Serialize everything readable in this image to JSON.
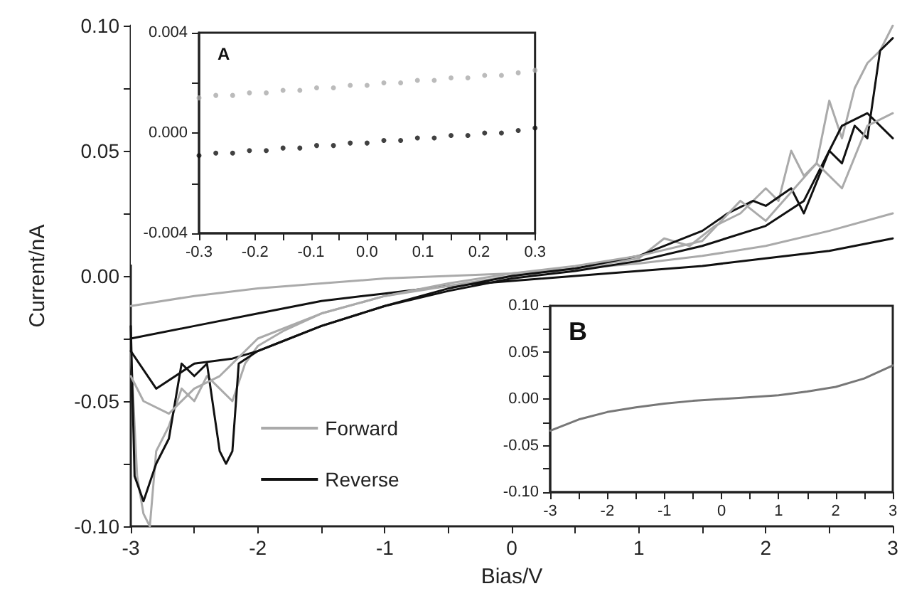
{
  "chart_data": [
    {
      "type": "line",
      "xlabel": "Bias/V",
      "ylabel": "Current/nA",
      "xlim": [
        -3,
        3
      ],
      "ylim": [
        -0.1,
        0.1
      ],
      "xticks": [
        -3,
        {
          "value": -2.5,
          "label": null
        },
        -2,
        {
          "value": -1.5,
          "label": null
        },
        -1,
        {
          "value": -0.5,
          "label": null
        },
        0,
        {
          "value": 0.5,
          "label": null
        },
        1,
        {
          "value": 1.5,
          "label": null
        },
        2,
        {
          "value": 2.5,
          "label": null
        },
        3
      ],
      "yticks": [
        {
          "value": -0.1,
          "label": "-0.10"
        },
        {
          "value": -0.075,
          "label": null
        },
        {
          "value": -0.05,
          "label": "-0.05"
        },
        {
          "value": -0.025,
          "label": null
        },
        {
          "value": 0,
          "label": "0.00"
        },
        {
          "value": 0.025,
          "label": null
        },
        {
          "value": 0.05,
          "label": "0.05"
        },
        {
          "value": 0.075,
          "label": null
        },
        {
          "value": 0.1,
          "label": "0.10"
        }
      ],
      "grid": false,
      "legend": "bottom left",
      "marker": "none",
      "line_style": "solid",
      "series": [
        {
          "name": "Forward",
          "color": "#aaaaaa",
          "x": [
            -3,
            -2.5,
            -2,
            -1.5,
            -1,
            -0.5,
            0,
            0.5,
            1,
            1.5,
            2,
            2.5,
            3
          ],
          "values": [
            -0.012,
            -0.008,
            -0.005,
            -0.003,
            -0.001,
            0,
            0.001,
            0.003,
            0.005,
            0.008,
            0.012,
            0.018,
            0.025
          ]
        },
        {
          "name": "Reverse",
          "color": "#111111",
          "x": [
            -3,
            -2.5,
            -2,
            -1.5,
            -1,
            -0.5,
            0,
            0.5,
            1,
            1.5,
            2,
            2.5,
            3
          ],
          "values": [
            -0.025,
            -0.02,
            -0.015,
            -0.01,
            -0.007,
            -0.004,
            -0.002,
            0,
            0.002,
            0.004,
            0.007,
            0.01,
            0.015
          ]
        },
        {
          "color": "#aaaaaa",
          "x": [
            -3,
            -2.95,
            -2.9,
            -2.85,
            -2.8,
            -2.7,
            -2.6,
            -2.5,
            -2.4,
            -2.3,
            -2.2,
            -2.1,
            -2,
            -1.8,
            -1.5,
            -1,
            -0.5,
            0,
            0.5,
            1,
            1.2,
            1.4,
            1.6,
            1.8,
            2,
            2.1,
            2.2,
            2.3,
            2.4,
            2.5,
            2.6,
            2.7,
            2.8,
            2.9,
            3
          ],
          "values": [
            -0.03,
            -0.08,
            -0.095,
            -0.1,
            -0.07,
            -0.06,
            -0.045,
            -0.05,
            -0.04,
            -0.045,
            -0.05,
            -0.035,
            -0.028,
            -0.022,
            -0.015,
            -0.008,
            -0.004,
            0,
            0.003,
            0.007,
            0.015,
            0.012,
            0.02,
            0.025,
            0.035,
            0.03,
            0.05,
            0.04,
            0.045,
            0.07,
            0.055,
            0.075,
            0.085,
            0.09,
            0.1
          ]
        },
        {
          "color": "#111111",
          "x": [
            -3,
            -2.97,
            -2.9,
            -2.8,
            -2.7,
            -2.6,
            -2.5,
            -2.4,
            -2.3,
            -2.25,
            -2.2,
            -2.15,
            -2,
            -1.8,
            -1.5,
            -1,
            -0.5,
            0,
            0.5,
            1,
            1.5,
            1.7,
            1.9,
            2,
            2.2,
            2.3,
            2.5,
            2.6,
            2.7,
            2.8,
            2.9,
            3
          ],
          "values": [
            -0.02,
            -0.08,
            -0.09,
            -0.075,
            -0.065,
            -0.035,
            -0.04,
            -0.035,
            -0.07,
            -0.075,
            -0.07,
            -0.035,
            -0.03,
            -0.026,
            -0.02,
            -0.012,
            -0.005,
            0,
            0.003,
            0.008,
            0.018,
            0.025,
            0.03,
            0.028,
            0.035,
            0.025,
            0.05,
            0.045,
            0.06,
            0.055,
            0.09,
            0.095
          ]
        },
        {
          "color": "#111111",
          "x": [
            -3,
            -2.8,
            -2.5,
            -2.2,
            -2,
            -1.5,
            -1,
            -0.5,
            0,
            0.5,
            1,
            1.5,
            2,
            2.3,
            2.6,
            2.8,
            3
          ],
          "values": [
            -0.03,
            -0.045,
            -0.035,
            -0.033,
            -0.03,
            -0.02,
            -0.012,
            -0.006,
            -0.001,
            0.002,
            0.006,
            0.012,
            0.02,
            0.03,
            0.06,
            0.065,
            0.055
          ]
        },
        {
          "color": "#aaaaaa",
          "x": [
            -3,
            -2.9,
            -2.7,
            -2.5,
            -2.3,
            -2,
            -1.5,
            -1,
            -0.5,
            0,
            0.5,
            1,
            1.5,
            1.8,
            2,
            2.4,
            2.6,
            2.8,
            3
          ],
          "values": [
            -0.04,
            -0.05,
            -0.055,
            -0.045,
            -0.04,
            -0.025,
            -0.015,
            -0.008,
            -0.003,
            0.001,
            0.004,
            0.008,
            0.014,
            0.03,
            0.022,
            0.045,
            0.035,
            0.06,
            0.065
          ]
        }
      ]
    },
    {
      "type": "scatter",
      "title": "A",
      "xlim": [
        -0.3,
        0.3
      ],
      "ylim": [
        -0.004,
        0.004
      ],
      "xticks": [
        {
          "value": -0.3,
          "label": "-0.3"
        },
        {
          "value": -0.25,
          "label": null
        },
        {
          "value": -0.2,
          "label": "-0.2"
        },
        {
          "value": -0.15,
          "label": null
        },
        {
          "value": -0.1,
          "label": "-0.1"
        },
        {
          "value": -0.05,
          "label": null
        },
        {
          "value": 0,
          "label": "0.0"
        },
        {
          "value": 0.05,
          "label": null
        },
        {
          "value": 0.1,
          "label": "0.1"
        },
        {
          "value": 0.15,
          "label": null
        },
        {
          "value": 0.2,
          "label": "0.2"
        },
        {
          "value": 0.25,
          "label": null
        },
        {
          "value": 0.3,
          "label": "0.3"
        }
      ],
      "yticks": [
        {
          "value": -0.004,
          "label": "-0.004"
        },
        {
          "value": -0.002,
          "label": null
        },
        {
          "value": 0,
          "label": "0.000"
        },
        {
          "value": 0.002,
          "label": null
        },
        {
          "value": 0.004,
          "label": "0.004"
        }
      ],
      "grid": false,
      "marker": "circle",
      "x": [
        -0.3,
        -0.27,
        -0.24,
        -0.21,
        -0.18,
        -0.15,
        -0.12,
        -0.09,
        -0.06,
        -0.03,
        0,
        0.03,
        0.06,
        0.09,
        0.12,
        0.15,
        0.18,
        0.21,
        0.24,
        0.27,
        0.3
      ],
      "series": [
        {
          "color": "#aaaaaa",
          "values": [
            0.0014,
            0.0015,
            0.0015,
            0.0016,
            0.0016,
            0.0017,
            0.0017,
            0.0018,
            0.0018,
            0.0019,
            0.0019,
            0.002,
            0.002,
            0.0021,
            0.0021,
            0.0022,
            0.0022,
            0.0023,
            0.0023,
            0.0024,
            0.0025
          ]
        },
        {
          "color": "#111111",
          "values": [
            -0.0009,
            -0.0008,
            -0.0008,
            -0.0007,
            -0.0007,
            -0.0006,
            -0.0006,
            -0.0005,
            -0.0005,
            -0.0004,
            -0.0004,
            -0.0003,
            -0.0003,
            -0.0002,
            -0.0002,
            -0.0001,
            -0.0001,
            0,
            0,
            0.0001,
            0.0002
          ]
        }
      ]
    },
    {
      "type": "line",
      "title": "B",
      "xlim": [
        -3,
        3
      ],
      "ylim": [
        -0.1,
        0.1
      ],
      "xticks": [
        -3,
        {
          "value": -2.5,
          "label": null
        },
        -2,
        {
          "value": -1.5,
          "label": null
        },
        -1,
        {
          "value": -0.5,
          "label": null
        },
        0,
        {
          "value": 0.5,
          "label": null
        },
        1,
        {
          "value": 1.5,
          "label": null
        },
        2,
        {
          "value": 2.5,
          "label": null
        },
        3
      ],
      "yticks": [
        {
          "value": -0.1,
          "label": "-0.10"
        },
        {
          "value": -0.075,
          "label": null
        },
        {
          "value": -0.05,
          "label": "-0.05"
        },
        {
          "value": -0.025,
          "label": null
        },
        {
          "value": 0,
          "label": "0.00"
        },
        {
          "value": 0.025,
          "label": null
        },
        {
          "value": 0.05,
          "label": "0.05"
        },
        {
          "value": 0.075,
          "label": null
        },
        {
          "value": 0.1,
          "label": "0.10"
        }
      ],
      "grid": false,
      "marker": "none",
      "line_style": "solid",
      "x": [
        -3,
        -2.5,
        -2,
        -1.5,
        -1,
        -0.5,
        0,
        0.5,
        1,
        1.5,
        2,
        2.5,
        3
      ],
      "series": [
        {
          "color": "#777777",
          "values": [
            -0.034,
            -0.022,
            -0.014,
            -0.009,
            -0.005,
            -0.002,
            0,
            0.002,
            0.004,
            0.008,
            0.013,
            0.022,
            0.036
          ]
        }
      ]
    }
  ]
}
